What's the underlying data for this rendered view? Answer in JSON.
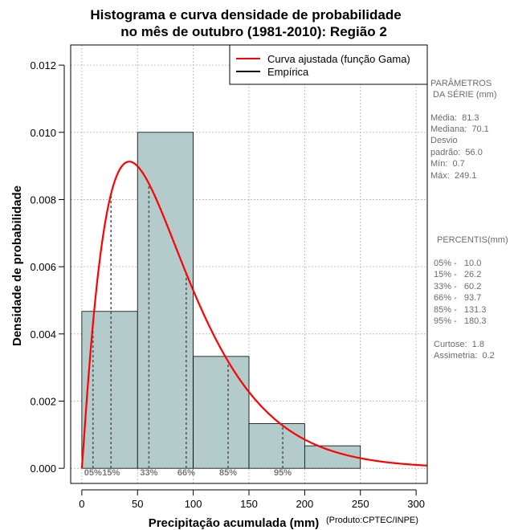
{
  "chart_data": {
    "type": "bar",
    "title_lines": [
      "Histograma e curva densidade de probabilidade",
      "no mês de outubro (1981-2010): Região 2"
    ],
    "xlabel": "Precipitação acumulada (mm)",
    "ylabel": "Densidade de probabilidade",
    "credit": "(Produto:CPTEC/INPE)",
    "xlim": [
      -10,
      310
    ],
    "ylim": [
      -0.00045,
      0.0126
    ],
    "xticks": [
      0,
      50,
      100,
      150,
      200,
      250,
      300
    ],
    "yticks": [
      0.0,
      0.002,
      0.004,
      0.006,
      0.008,
      0.01,
      0.012
    ],
    "ytick_labels": [
      "0.000",
      "0.002",
      "0.004",
      "0.006",
      "0.008",
      "0.010",
      "0.012"
    ],
    "grid": true,
    "bins": [
      {
        "from": 0,
        "to": 50,
        "density": 0.00467
      },
      {
        "from": 50,
        "to": 100,
        "density": 0.01
      },
      {
        "from": 100,
        "to": 150,
        "density": 0.00333
      },
      {
        "from": 150,
        "to": 200,
        "density": 0.00133
      },
      {
        "from": 200,
        "to": 250,
        "density": 0.00067
      }
    ],
    "bar_color": "#b4cbcb",
    "curve": {
      "name": "Curva ajustada (função Gama)",
      "shape": 2.1,
      "scale": 38.7,
      "color": "#ff0000"
    },
    "percentiles": [
      {
        "label": "05%",
        "value": 10.0
      },
      {
        "label": "15%",
        "value": 26.2
      },
      {
        "label": "33%",
        "value": 60.2
      },
      {
        "label": "66%",
        "value": 93.7
      },
      {
        "label": "85%",
        "value": 131.3
      },
      {
        "label": "95%",
        "value": 180.3
      }
    ],
    "legend": [
      {
        "label": "Curva ajustada (função Gama)",
        "color": "#ff0000"
      },
      {
        "label": "Empírica",
        "color": "#000000"
      }
    ],
    "legend_position": "top-right"
  },
  "side_panel": {
    "params_heading": [
      "PARÂMETROS",
      " DA SÉRIE (mm)"
    ],
    "params": [
      "Média:  81.3",
      "Mediana:  70.1",
      "Desvio",
      "padrão:  56.0",
      "Mín:  0.7",
      "Máx:  249.1"
    ],
    "percentis_heading": "PERCENTIS(mm)",
    "percentis": [
      "05% -   10.0",
      "15% -   26.2",
      "33% -   60.2",
      "66% -   93.7",
      "85% -   131.3",
      "95% -   180.3"
    ],
    "shape_stats": [
      "Curtose:  1.8",
      "Assimetria:  0.2"
    ]
  }
}
